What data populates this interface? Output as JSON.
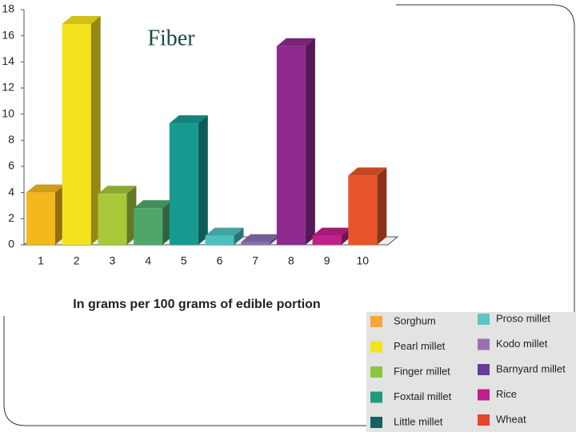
{
  "chart_data": {
    "type": "bar3d",
    "title": "Fiber",
    "x_label": "In grams per 100 grams of edible portion",
    "categories": [
      "1",
      "2",
      "3",
      "4",
      "5",
      "6",
      "7",
      "8",
      "9",
      "10"
    ],
    "values": [
      4.0,
      16.9,
      3.9,
      2.8,
      9.3,
      0.7,
      0.2,
      15.2,
      0.7,
      5.3
    ],
    "colors": [
      "#f2b81e",
      "#f5e21e",
      "#a8c83a",
      "#4fa66a",
      "#169a92",
      "#4cc0c0",
      "#8a6fb0",
      "#8e2a8e",
      "#c0208a",
      "#e8552a"
    ],
    "legend": [
      "Sorghum",
      "Pearl millet",
      "Finger millet",
      "Foxtail millet",
      "Little millet",
      "Proso millet",
      "Kodo millet",
      "Barnyard millet",
      "Rice",
      "Wheat"
    ],
    "legend_colors": [
      "#f2a93a",
      "#f5e21e",
      "#8cc63f",
      "#1f9a7e",
      "#16605e",
      "#5bc6c2",
      "#9a6fb0",
      "#6a3a9a",
      "#c0208a",
      "#e8452a"
    ],
    "ylim": [
      0,
      18
    ],
    "yticks": [
      0,
      2,
      4,
      6,
      8,
      10,
      12,
      14,
      16,
      18
    ]
  }
}
